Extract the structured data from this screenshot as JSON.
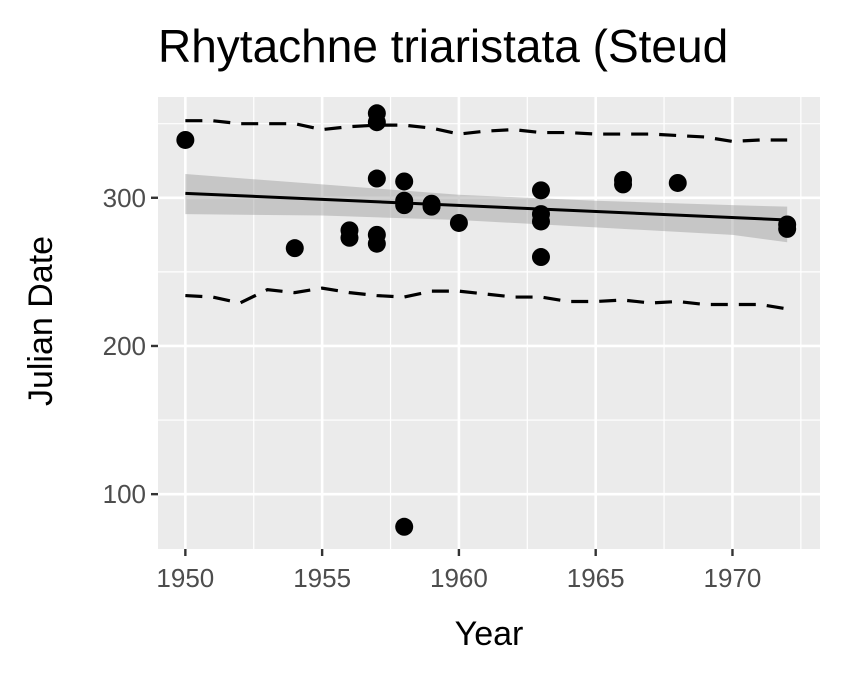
{
  "chart_data": {
    "type": "scatter",
    "title": "Rhytachne triaristata (Steud",
    "xlabel": "Year",
    "ylabel": "Julian Date",
    "xlim": [
      1949,
      1973.2
    ],
    "ylim": [
      63,
      368
    ],
    "x_ticks": [
      1950,
      1955,
      1960,
      1965,
      1970
    ],
    "y_ticks": [
      100,
      200,
      300
    ],
    "grid": true,
    "background_color": "#ebebeb",
    "grid_color": "#ffffff",
    "point_color": "#000000",
    "points": [
      {
        "x": 1950,
        "y": 339
      },
      {
        "x": 1954,
        "y": 266
      },
      {
        "x": 1956,
        "y": 273
      },
      {
        "x": 1956,
        "y": 278
      },
      {
        "x": 1957,
        "y": 357
      },
      {
        "x": 1957,
        "y": 351
      },
      {
        "x": 1957,
        "y": 313
      },
      {
        "x": 1957,
        "y": 275
      },
      {
        "x": 1957,
        "y": 269
      },
      {
        "x": 1958,
        "y": 311
      },
      {
        "x": 1958,
        "y": 298
      },
      {
        "x": 1958,
        "y": 295
      },
      {
        "x": 1958,
        "y": 78
      },
      {
        "x": 1959,
        "y": 296
      },
      {
        "x": 1959,
        "y": 294
      },
      {
        "x": 1960,
        "y": 283
      },
      {
        "x": 1963,
        "y": 305
      },
      {
        "x": 1963,
        "y": 289
      },
      {
        "x": 1963,
        "y": 284
      },
      {
        "x": 1963,
        "y": 260
      },
      {
        "x": 1966,
        "y": 312
      },
      {
        "x": 1966,
        "y": 309
      },
      {
        "x": 1968,
        "y": 310
      },
      {
        "x": 1972,
        "y": 282
      },
      {
        "x": 1972,
        "y": 279
      }
    ],
    "fit_line": {
      "x": [
        1950,
        1972
      ],
      "y": [
        303,
        285
      ]
    },
    "confidence_band": {
      "x": [
        1950,
        1955,
        1960,
        1965,
        1970,
        1972
      ],
      "upper": [
        316,
        309,
        302,
        298,
        295,
        294
      ],
      "lower": [
        289,
        288,
        285,
        280,
        275,
        270
      ]
    },
    "upper_bound_line": {
      "x": [
        1950,
        1951,
        1952,
        1953,
        1954,
        1955,
        1956,
        1957,
        1958,
        1959,
        1960,
        1961,
        1962,
        1963,
        1964,
        1965,
        1966,
        1967,
        1968,
        1969,
        1970,
        1971,
        1972
      ],
      "y": [
        352,
        352,
        350,
        350,
        350,
        346,
        348,
        349,
        349,
        347,
        343,
        345,
        346,
        344,
        344,
        343,
        343,
        343,
        342,
        341,
        338,
        339,
        339
      ]
    },
    "lower_bound_line": {
      "x": [
        1950,
        1951,
        1952,
        1953,
        1954,
        1955,
        1956,
        1957,
        1958,
        1959,
        1960,
        1961,
        1962,
        1963,
        1964,
        1965,
        1966,
        1967,
        1968,
        1969,
        1970,
        1971,
        1972
      ],
      "y": [
        234,
        233,
        229,
        238,
        236,
        239,
        236,
        234,
        233,
        237,
        237,
        235,
        233,
        233,
        230,
        230,
        231,
        229,
        230,
        228,
        228,
        228,
        225
      ]
    }
  }
}
